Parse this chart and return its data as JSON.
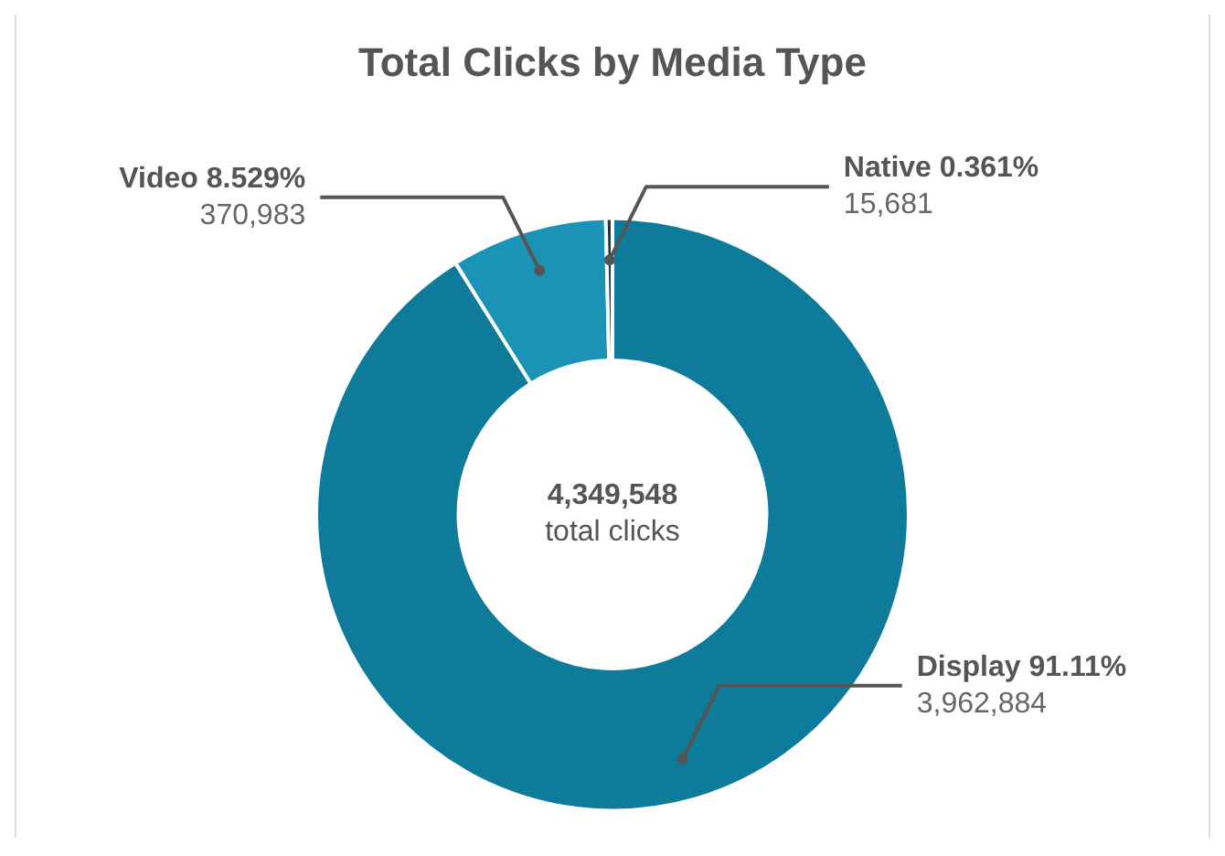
{
  "chart_data": {
    "type": "donut",
    "title": "Total Clicks by Media Type",
    "categories": [
      "Display",
      "Video",
      "Native"
    ],
    "values": [
      91.11,
      8.529,
      0.361
    ],
    "colors": [
      "#0f7b9b",
      "#1b93b7",
      "#16384a"
    ],
    "value_labels": [
      "91.11%",
      "8.529%",
      "0.361%"
    ],
    "legend": false,
    "annotations": [
      "4,349,548",
      "total clicks",
      {
        "text": "3,962,884",
        "x": "Display"
      },
      {
        "text": "370,983",
        "x": "Video"
      },
      {
        "text": "15,681",
        "x": "Native"
      }
    ]
  }
}
